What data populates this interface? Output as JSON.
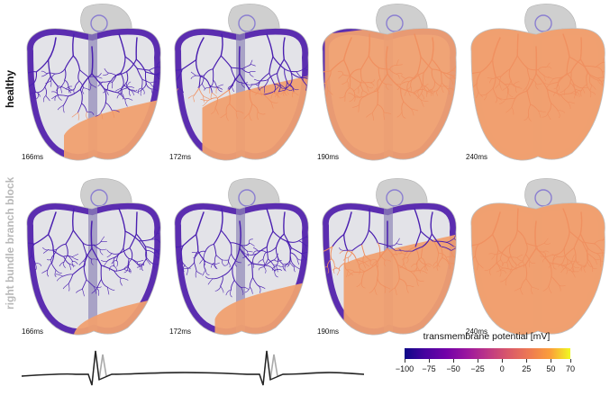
{
  "rows": [
    {
      "label": "healthy",
      "label_color": "#111111"
    },
    {
      "label": "right bundle branch block",
      "label_color": "#b8b8b8"
    }
  ],
  "panels": [
    {
      "row": 0,
      "time": "166ms",
      "activation": 0.3
    },
    {
      "row": 0,
      "time": "172ms",
      "activation": 0.45
    },
    {
      "row": 0,
      "time": "190ms",
      "activation": 0.85
    },
    {
      "row": 0,
      "time": "240ms",
      "activation": 1.0
    },
    {
      "row": 1,
      "time": "166ms",
      "activation": 0.15
    },
    {
      "row": 1,
      "time": "172ms",
      "activation": 0.25
    },
    {
      "row": 1,
      "time": "190ms",
      "activation": 0.55
    },
    {
      "row": 1,
      "time": "240ms",
      "activation": 0.97
    }
  ],
  "colorbar": {
    "title": "transmembrane potential [mV]",
    "ticks": [
      "−100",
      "−75",
      "−50",
      "−25",
      "0",
      "25",
      "50",
      "70"
    ],
    "min": -100,
    "max": 70,
    "colors": {
      "rest": "#5b2db0",
      "depolarized": "#f0a070",
      "conduction_rest": "#4a1fb0",
      "conduction_active": "#f09060"
    }
  },
  "ecg": {
    "traces": [
      {
        "name": "healthy",
        "color": "#222222"
      },
      {
        "name": "right bundle branch block",
        "color": "#aaaaaa"
      }
    ]
  }
}
